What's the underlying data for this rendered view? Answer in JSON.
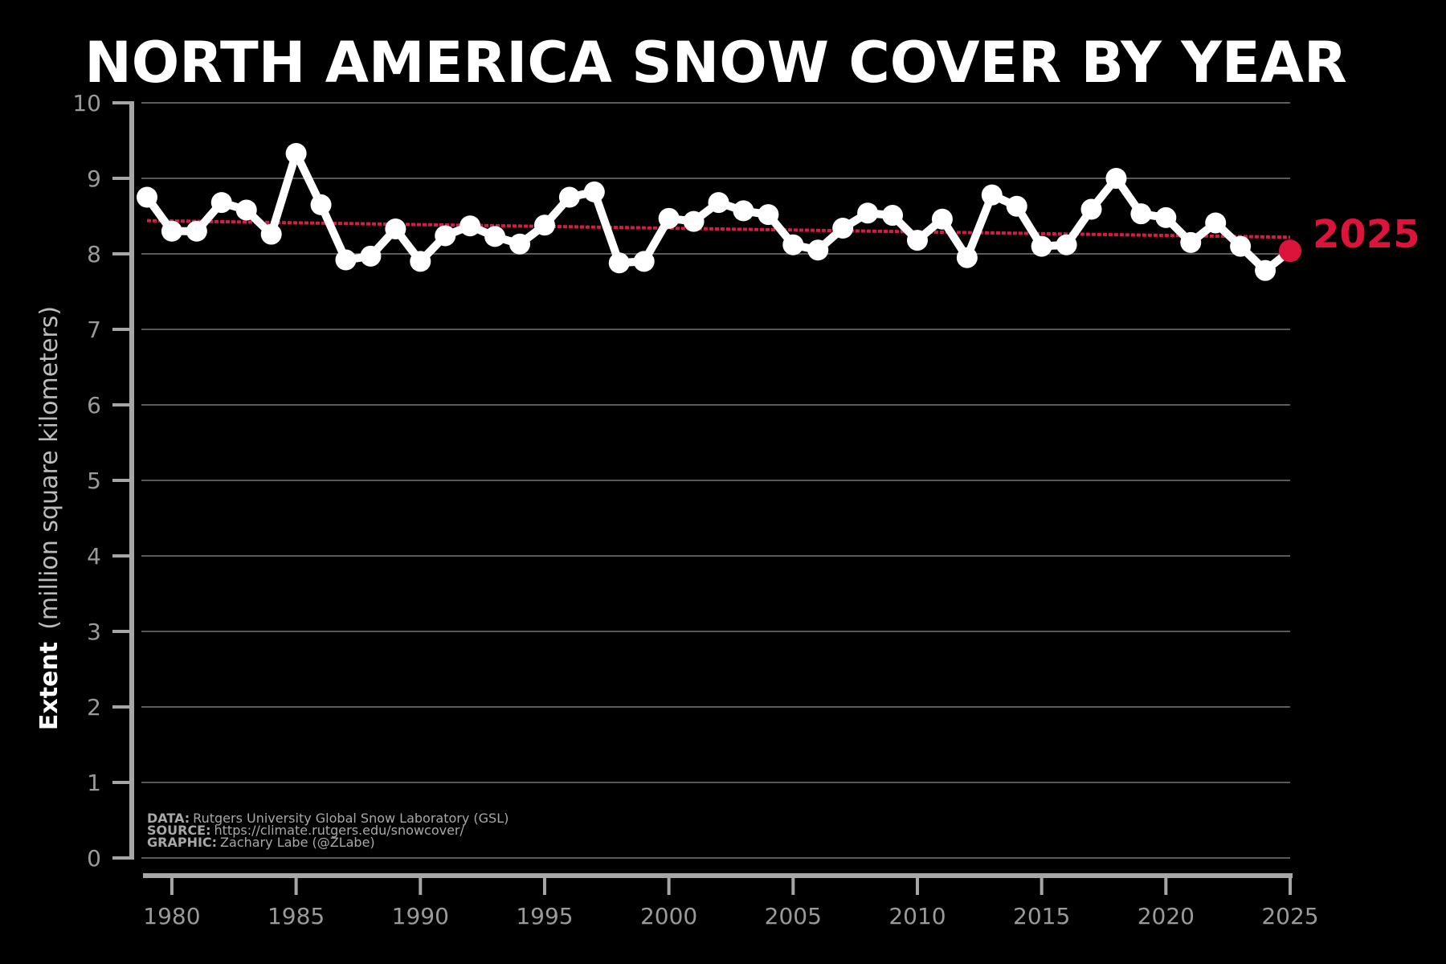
{
  "chart_data": {
    "type": "line",
    "title": "NORTH AMERICA SNOW COVER BY YEAR",
    "ylabel_bold": "Extent",
    "ylabel_rest": "(million square kilometers)",
    "xlim": [
      1979,
      2025
    ],
    "ylim": [
      0,
      10
    ],
    "yticks": [
      0,
      1,
      2,
      3,
      4,
      5,
      6,
      7,
      8,
      9,
      10
    ],
    "xticks": [
      1980,
      1985,
      1990,
      1995,
      2000,
      2005,
      2010,
      2015,
      2020,
      2025
    ],
    "grid": true,
    "series": [
      {
        "x": [
          1979,
          1980,
          1981,
          1982,
          1983,
          1984,
          1985,
          1986,
          1987,
          1988,
          1989,
          1990,
          1991,
          1992,
          1993,
          1994,
          1995,
          1996,
          1997,
          1998,
          1999,
          2000,
          2001,
          2002,
          2003,
          2004,
          2005,
          2006,
          2007,
          2008,
          2009,
          2010,
          2011,
          2012,
          2013,
          2014,
          2015,
          2016,
          2017,
          2018,
          2019,
          2020,
          2021,
          2022,
          2023,
          2024,
          2025
        ],
        "y": [
          8.75,
          8.3,
          8.3,
          8.68,
          8.58,
          8.26,
          9.33,
          8.65,
          7.92,
          7.97,
          8.33,
          7.9,
          8.24,
          8.37,
          8.23,
          8.13,
          8.38,
          8.75,
          8.82,
          7.88,
          7.9,
          8.47,
          8.43,
          8.68,
          8.57,
          8.52,
          8.12,
          8.05,
          8.34,
          8.54,
          8.51,
          8.18,
          8.46,
          7.95,
          8.78,
          8.63,
          8.1,
          8.12,
          8.59,
          9.0,
          8.53,
          8.48,
          8.15,
          8.41,
          8.1,
          7.78,
          8.04
        ]
      }
    ],
    "trend": {
      "x": [
        1979,
        2025
      ],
      "y": [
        8.44,
        8.22
      ]
    },
    "highlight": {
      "x": 2025,
      "y": 8.04,
      "label": "2025"
    },
    "colors": {
      "background": "#000000",
      "line": "#ffffff",
      "grid": "#5a5a5a",
      "axis": "#a6a6a6",
      "trend": "#d81b46",
      "highlight": "#dc143c"
    },
    "credits": [
      {
        "key": "DATA:",
        "value": "Rutgers University Global Snow Laboratory (GSL)"
      },
      {
        "key": "SOURCE:",
        "value": "https://climate.rutgers.edu/snowcover/"
      },
      {
        "key": "GRAPHIC:",
        "value": "Zachary Labe (@ZLabe)"
      }
    ]
  }
}
